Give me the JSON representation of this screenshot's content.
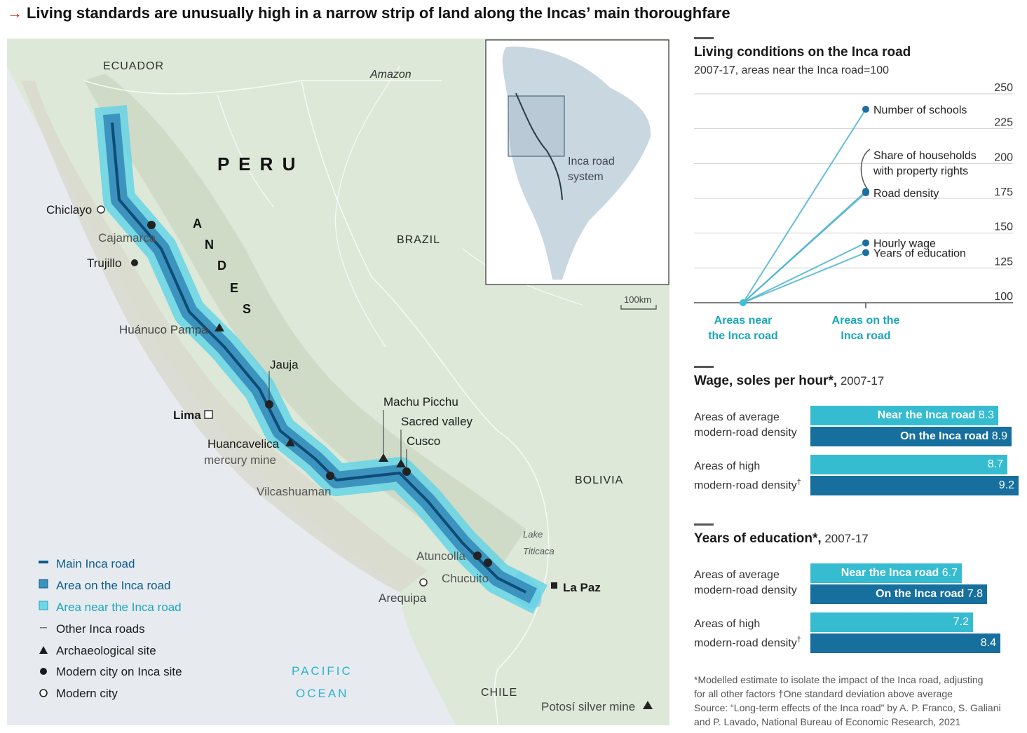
{
  "headline": {
    "arrow": "→",
    "text": "Living standards are unusually high in a narrow strip of land along the Incas’ main thoroughfare"
  },
  "map": {
    "countries": {
      "ecuador": "ECUADOR",
      "peru": "P E R U",
      "brazil": "BRAZIL",
      "bolivia": "BOLIVIA",
      "chile": "CHILE"
    },
    "andes": [
      "A",
      "N",
      "D",
      "E",
      "S"
    ],
    "amazon": "Amazon",
    "pacific": [
      "PACIFIC",
      "OCEAN"
    ],
    "lake": [
      "Lake",
      "Titicaca"
    ],
    "scale": "100km",
    "places": {
      "chiclayo": "Chiclayo",
      "cajamarca": "Cajamarca",
      "trujillo": "Trujillo",
      "huanuco": "Huánuco Pampa",
      "jauja": "Jauja",
      "lima": "Lima",
      "huancavelica": [
        "Huancavelica",
        "mercury mine"
      ],
      "vilcashuaman": "Vilcashuaman",
      "machu": "Machu Picchu",
      "sacred": "Sacred valley",
      "cusco": "Cusco",
      "atuncolla": "Atuncolla",
      "chucuito": "Chucuito",
      "arequipa": "Arequipa",
      "lapaz": "La Paz",
      "potosi": "Potosí silver mine"
    },
    "inset": [
      "Inca road",
      "system"
    ],
    "legend": [
      {
        "label": "Main Inca road",
        "color": "#0d5c8c"
      },
      {
        "label": "Area on the Inca road",
        "color": "#0d5c8c"
      },
      {
        "label": "Area near the Inca road",
        "color": "#1aa6bd"
      },
      {
        "label": "Other Inca roads",
        "color": "#1a1a1a"
      },
      {
        "label": "Archaeological site",
        "color": "#1a1a1a"
      },
      {
        "label": "Modern city on Inca site",
        "color": "#1a1a1a"
      },
      {
        "label": "Modern city",
        "color": "#1a1a1a"
      }
    ]
  },
  "panels": {
    "living": {
      "title": "Living conditions on the Inca road",
      "subtitle": "2007-17, areas near the Inca road=100"
    },
    "wage": {
      "title": "Wage, soles per hour*,",
      "title_light": " 2007-17"
    },
    "education": {
      "title": "Years of education*,",
      "title_light": "  2007-17"
    }
  },
  "chart_data": [
    {
      "type": "line",
      "x_categories": [
        [
          "Areas near",
          "the Inca road"
        ],
        [
          "Areas on the",
          "Inca road"
        ]
      ],
      "y_ticks": [
        250,
        225,
        200,
        175,
        150,
        125,
        100
      ],
      "ylim": [
        100,
        250
      ],
      "series": [
        {
          "name": "Number of schools",
          "values": [
            100,
            239
          ]
        },
        {
          "name": "Share of households with property rights",
          "label_lines": [
            "Share of households",
            "with property rights"
          ],
          "values": [
            100,
            180
          ]
        },
        {
          "name": "Road density",
          "values": [
            100,
            179
          ]
        },
        {
          "name": "Hourly wage",
          "values": [
            100,
            143
          ]
        },
        {
          "name": "Years of education",
          "values": [
            100,
            136
          ]
        }
      ],
      "colors": {
        "line": "#4bb3d0",
        "point": "#1b6fa1",
        "origin": "#3cc0d6",
        "axis_label": "#1aa6bd"
      }
    },
    {
      "type": "bar",
      "groups": [
        {
          "label": [
            "Areas of average",
            "modern-road density"
          ],
          "marker": "",
          "bars": [
            {
              "name": "Near the Inca road",
              "value": 8.3
            },
            {
              "name": "On the Inca road",
              "value": 8.9
            }
          ]
        },
        {
          "label": [
            "Areas of high",
            "modern-road density"
          ],
          "marker": "†",
          "bars": [
            {
              "name": "",
              "value": 8.7
            },
            {
              "name": "",
              "value": 9.2
            }
          ]
        }
      ],
      "colors": {
        "near": "#36bcd1",
        "on": "#176f9e"
      }
    },
    {
      "type": "bar",
      "groups": [
        {
          "label": [
            "Areas of average",
            "modern-road density"
          ],
          "marker": "",
          "bars": [
            {
              "name": "Near the Inca road",
              "value": 6.7
            },
            {
              "name": "On the Inca road",
              "value": 7.8
            }
          ]
        },
        {
          "label": [
            "Areas of high",
            "modern-road density"
          ],
          "marker": "†",
          "bars": [
            {
              "name": "",
              "value": 7.2
            },
            {
              "name": "",
              "value": 8.4
            }
          ]
        }
      ],
      "colors": {
        "near": "#36bcd1",
        "on": "#176f9e"
      }
    }
  ],
  "footnotes": [
    "*Modelled estimate to isolate the impact of the Inca road, adjusting",
    "for all other factors    †One standard deviation above average",
    "Source: “Long-term effects of the Inca road” by A. P. Franco, S. Galiani",
    "and P. Lavado, National Bureau of Economic Research, 2021"
  ]
}
